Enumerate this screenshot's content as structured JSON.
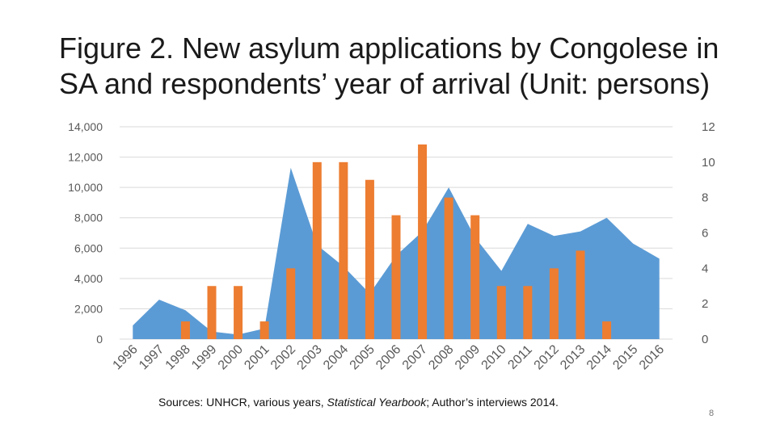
{
  "slide": {
    "title_line1": "Figure 2. New asylum applications by Congolese in",
    "title_line2": "SA and respondents’ year of arrival (Unit: persons)",
    "source_prefix": "Sources: UNHCR, various years, ",
    "source_italic": "Statistical Yearbook",
    "source_suffix": "; Author’s interviews 2014.",
    "page_number": "8"
  },
  "chart_data": {
    "type": "bar",
    "title": "",
    "categories": [
      "1996",
      "1997",
      "1998",
      "1999",
      "2000",
      "2001",
      "2002",
      "2003",
      "2004",
      "2005",
      "2006",
      "2007",
      "2008",
      "2009",
      "2010",
      "2011",
      "2012",
      "2013",
      "2014",
      "2015",
      "2016"
    ],
    "series": [
      {
        "type": "area",
        "axis": "left",
        "color": "#5b9bd5",
        "values": [
          900,
          2600,
          1900,
          500,
          300,
          700,
          11300,
          6200,
          4800,
          3000,
          5500,
          7100,
          10000,
          6700,
          4500,
          7600,
          6800,
          7100,
          8000,
          6300,
          5300
        ]
      },
      {
        "type": "bar",
        "axis": "right",
        "color": "#ed7d31",
        "values": [
          0,
          0,
          1,
          3,
          3,
          1,
          4,
          10,
          10,
          9,
          7,
          11,
          8,
          7,
          3,
          3,
          4,
          5,
          1,
          0,
          0
        ]
      }
    ],
    "y_left": {
      "min": 0,
      "max": 14000,
      "ticks": [
        "0",
        "2,000",
        "4,000",
        "6,000",
        "8,000",
        "10,000",
        "12,000",
        "14,000"
      ]
    },
    "y_right": {
      "min": 0,
      "max": 12,
      "ticks": [
        "0",
        "2",
        "4",
        "6",
        "8",
        "10",
        "12"
      ]
    },
    "grid": true,
    "legend": "none"
  }
}
